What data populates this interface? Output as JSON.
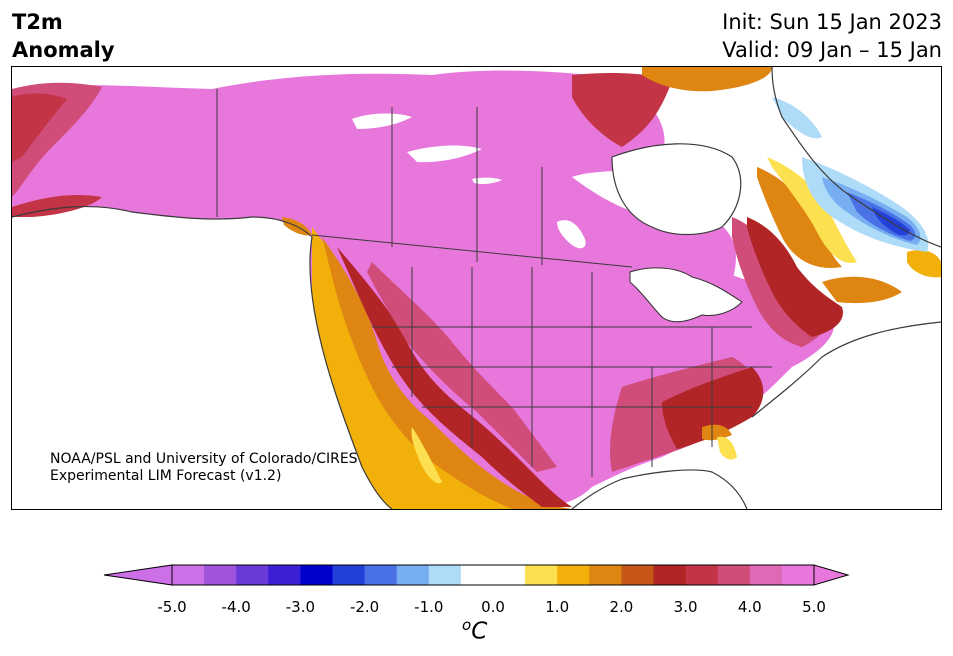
{
  "header": {
    "title_line1": "T2m",
    "title_line2": "Anomaly",
    "init_text": "Init: Sun 15 Jan 2023",
    "valid_text": "Valid: 09 Jan – 15 Jan"
  },
  "credit": {
    "line1": "NOAA/PSL and University of Colorado/CIRES",
    "line2": "Experimental LIM Forecast (v1.2)"
  },
  "colorbar": {
    "unit_base": "C",
    "unit_sup": "o",
    "ticks": [
      "-5.0",
      "-4.0",
      "-3.0",
      "-2.0",
      "-1.0",
      "0.0",
      "1.0",
      "2.0",
      "3.0",
      "4.0",
      "5.0"
    ],
    "colors": [
      "#cd6fe6",
      "#a253de",
      "#6a3ad9",
      "#3a1fd4",
      "#0000cc",
      "#2340d8",
      "#4a72e6",
      "#77aef2",
      "#aedcf8",
      "#ffffff",
      "#ffffff",
      "#fde050",
      "#f2b10a",
      "#df8612",
      "#c65718",
      "#b22527",
      "#c23446",
      "#cf4d78",
      "#df68b7",
      "#e877dc"
    ]
  },
  "map": {
    "region": "North America",
    "land_anomaly_default_color": "#e877dc",
    "ocean_color": "#ffffff"
  }
}
